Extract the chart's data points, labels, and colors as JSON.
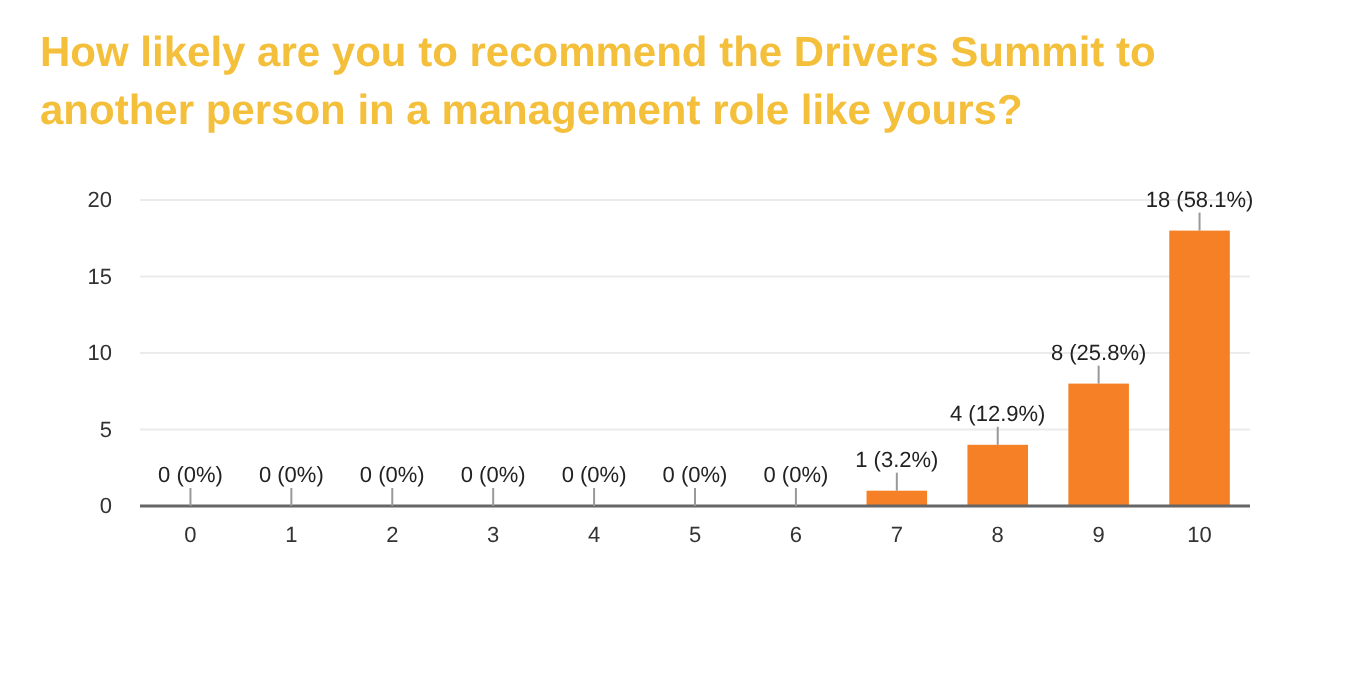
{
  "chart_data": {
    "type": "bar",
    "title": "How likely are you to recommend the Drivers Summit to another person in a management role like yours?",
    "categories": [
      "0",
      "1",
      "2",
      "3",
      "4",
      "5",
      "6",
      "7",
      "8",
      "9",
      "10"
    ],
    "values": [
      0,
      0,
      0,
      0,
      0,
      0,
      0,
      1,
      4,
      8,
      18
    ],
    "value_labels": [
      "0 (0%)",
      "0 (0%)",
      "0 (0%)",
      "0 (0%)",
      "0 (0%)",
      "0 (0%)",
      "0 (0%)",
      "1 (3.2%)",
      "4 (12.9%)",
      "8 (25.8%)",
      "18 (58.1%)"
    ],
    "color": "#f58025",
    "ylim": [
      0,
      20
    ],
    "yticks": [
      0,
      5,
      10,
      15,
      20
    ],
    "grid": "y"
  }
}
